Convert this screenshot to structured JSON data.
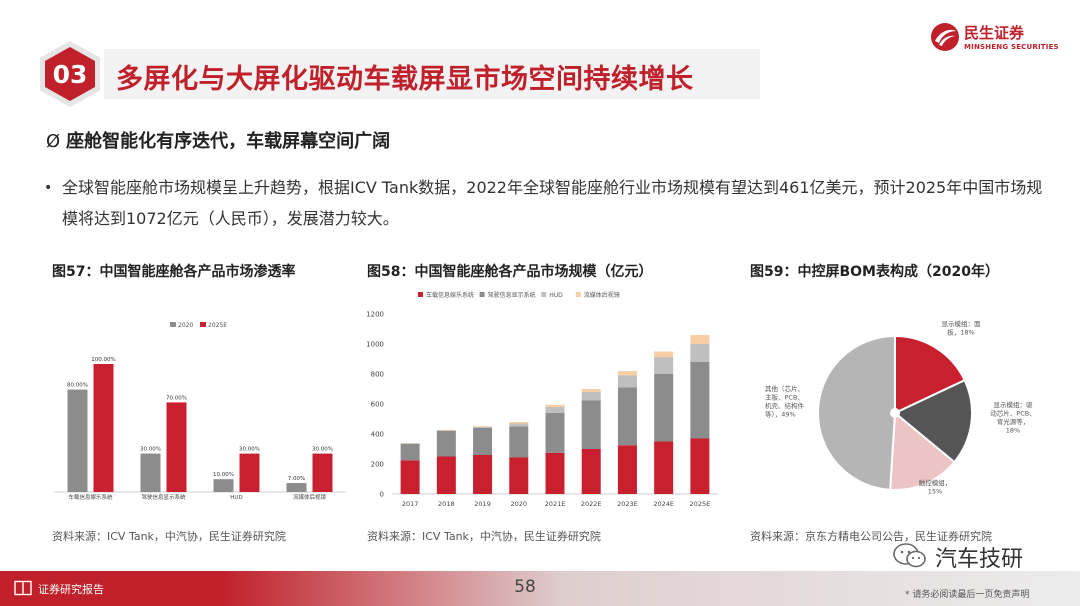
{
  "header": {
    "section_number": "03",
    "title": "多屏化与大屏化驱动车载屏显市场空间持续增长",
    "logo_cn": "民生证券",
    "logo_en": "MINSHENG SECURITIES"
  },
  "subtitle": {
    "mark": "Ø",
    "text": "座舱智能化有序迭代，车载屏幕空间广阔"
  },
  "bullet": {
    "dot": "•",
    "text": "全球智能座舱市场规模呈上升趋势，根据ICV Tank数据，2022年全球智能座舱行业市场规模有望达到461亿美元，预计2025年中国市场规模将达到1072亿元（人民币），发展潜力较大。"
  },
  "figures": [
    {
      "title": "图57：中国智能座舱各产品市场渗透率",
      "source": "资料来源：ICV Tank，中汽协，民生证券研究院"
    },
    {
      "title": "图58：中国智能座舱各产品市场规模（亿元）",
      "source": "资料来源：ICV Tank，中汽协，民生证券研究院"
    },
    {
      "title": "图59：中控屏BOM表构成（2020年）",
      "source": "资料来源：京东方精电公司公告，民生证券研究院"
    }
  ],
  "chart_data": [
    {
      "type": "bar",
      "title": "图57：中国智能座舱各产品市场渗透率",
      "categories": [
        "车载信息娱乐系统",
        "驾驶信息显示系统",
        "HUD",
        "流媒体后视镜"
      ],
      "series": [
        {
          "name": "2020",
          "values": [
            80,
            30,
            10,
            7
          ],
          "labels": [
            "80.00%",
            "30.00%",
            "10.00%",
            "7.00%"
          ],
          "color": "#8c8c8c"
        },
        {
          "name": "2025E",
          "values": [
            100,
            70,
            30,
            30
          ],
          "labels": [
            "100.00%",
            "70.00%",
            "30.00%",
            "30.00%"
          ],
          "color": "#c8202e"
        }
      ],
      "ylim": [
        0,
        100
      ],
      "legend": "top-center"
    },
    {
      "type": "bar",
      "stacked": true,
      "title": "图58：中国智能座舱各产品市场规模（亿元）",
      "categories": [
        "2017",
        "2018",
        "2019",
        "2020",
        "2021E",
        "2022E",
        "2023E",
        "2024E",
        "2025E"
      ],
      "series": [
        {
          "name": "车载信息娱乐系统",
          "values": [
            225,
            250,
            260,
            245,
            275,
            300,
            325,
            350,
            370
          ],
          "color": "#c8202e"
        },
        {
          "name": "驾驶信息显示系统",
          "values": [
            110,
            170,
            180,
            205,
            265,
            325,
            385,
            450,
            510
          ],
          "color": "#8c8c8c"
        },
        {
          "name": "HUD",
          "values": [
            3,
            5,
            8,
            20,
            40,
            55,
            80,
            110,
            120
          ],
          "color": "#bfbfbf"
        },
        {
          "name": "流媒体后视镜",
          "values": [
            2,
            3,
            4,
            10,
            15,
            20,
            30,
            40,
            60
          ],
          "color": "#f6cfa6"
        }
      ],
      "yticks": [
        "0",
        "200",
        "400",
        "600",
        "800",
        "1000",
        "1200"
      ],
      "ylim": [
        0,
        1200
      ],
      "legend": "top-center"
    },
    {
      "type": "pie",
      "donut": true,
      "title": "图59：中控屏BOM表构成（2020年）",
      "slices": [
        {
          "label": "显示模组：面板，18%",
          "value": 18,
          "color": "#c8202e"
        },
        {
          "label": "显示模组：驱动芯片、PCB、背光源等，18%",
          "value": 18,
          "color": "#555555"
        },
        {
          "label": "触控模组，15%",
          "value": 15,
          "color": "#ecc4c4"
        },
        {
          "label": "其他（芯片、主板、PCB、机壳、结构件等），49%",
          "value": 49,
          "color": "#b5b5b5"
        }
      ],
      "slice_texts": [
        [
          "显示模组：面",
          "板，18%"
        ],
        [
          "显示模组：驱",
          "动芯片、PCB、",
          "背光源等，",
          "18%"
        ],
        [
          "触控模组，",
          "15%"
        ],
        [
          "其他（芯片、",
          "主板、PCB、",
          "机壳、结构件",
          "等），49%"
        ]
      ]
    }
  ],
  "footer": {
    "label": "证券研究报告",
    "page_number": "58",
    "disclaimer": "* 请务必阅读最后一页免责声明"
  },
  "watermark": {
    "text": "汽车技研"
  }
}
